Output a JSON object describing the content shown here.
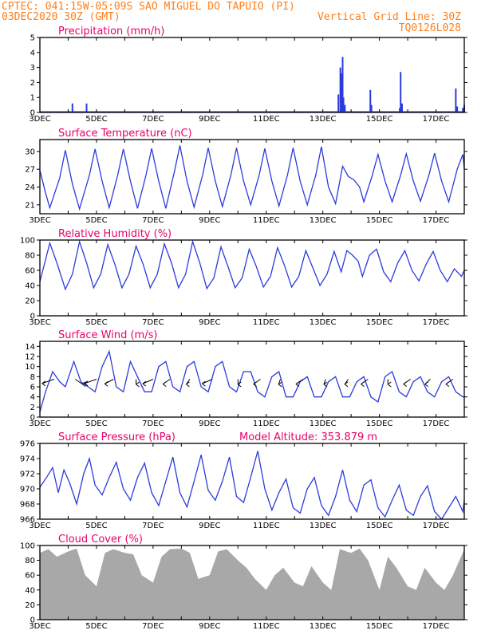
{
  "header": {
    "line1": "CPTEC:   041:15W-05:09S  SAO MIGUEL DO TAPUIO (PI)",
    "line2_left": "03DEC2020 30Z (GMT)",
    "line2_right": "Vertical Grid Line: 30Z",
    "line3_right": "TQ0126L028"
  },
  "colors": {
    "series": "#2b3bdc",
    "title": "#e8006c",
    "header": "#ff7f1a",
    "cloud": "#a8a8a8"
  },
  "x_tick_labels": [
    "3DEC",
    "5DEC",
    "7DEC",
    "9DEC",
    "11DEC",
    "13DEC",
    "15DEC",
    "17DEC"
  ],
  "x_range_days": [
    3,
    18
  ],
  "chart_data": [
    {
      "id": "precip",
      "type": "bar",
      "title": "Precipitation (mm/h)",
      "ylim": [
        0,
        5
      ],
      "yticks": [
        "0",
        "1",
        "2",
        "3",
        "4",
        "5"
      ],
      "x_day": [
        4.15,
        4.65,
        13.55,
        13.62,
        13.65,
        13.7,
        13.73,
        13.78,
        14.68,
        14.72,
        15.72,
        15.75,
        15.8,
        17.7,
        17.75,
        17.95,
        18.0
      ],
      "values": [
        0.6,
        0.6,
        1.2,
        3.0,
        2.6,
        3.7,
        1.0,
        0.5,
        1.5,
        0.5,
        0.3,
        2.7,
        0.6,
        1.6,
        0.4,
        0.3,
        0.5
      ]
    },
    {
      "id": "temp",
      "type": "line",
      "title": "Surface Temperature (nC)",
      "ylim": [
        19.5,
        32
      ],
      "yticks": [
        "21",
        "24",
        "27",
        "30"
      ],
      "series": [
        {
          "x_day": [
            3.0,
            3.2,
            3.35,
            3.7,
            3.9,
            4.15,
            4.4,
            4.75,
            4.95,
            5.2,
            5.45,
            5.75,
            5.95,
            6.2,
            6.45,
            6.75,
            6.95,
            7.2,
            7.45,
            7.75,
            7.95,
            8.2,
            8.45,
            8.75,
            8.95,
            9.2,
            9.45,
            9.75,
            9.95,
            10.2,
            10.45,
            10.75,
            10.95,
            11.2,
            11.45,
            11.75,
            11.95,
            12.2,
            12.45,
            12.75,
            12.95,
            13.2,
            13.45,
            13.7,
            13.9,
            14.1,
            14.3,
            14.45,
            14.75,
            14.95,
            15.2,
            15.45,
            15.75,
            15.95,
            16.2,
            16.45,
            16.75,
            16.95,
            17.2,
            17.45,
            17.75,
            17.95,
            18.0
          ],
          "values": [
            26.8,
            23.0,
            20.5,
            25.5,
            30.2,
            24.5,
            20.3,
            26.0,
            30.4,
            25.0,
            20.5,
            26.0,
            30.4,
            25.0,
            20.4,
            26.0,
            30.5,
            25.0,
            20.4,
            26.5,
            31.0,
            25.0,
            20.6,
            26.0,
            30.6,
            25.0,
            20.7,
            26.0,
            30.6,
            25.0,
            21.0,
            26.0,
            30.5,
            25.0,
            20.8,
            26.0,
            30.6,
            25.0,
            21.0,
            26.0,
            30.8,
            24.0,
            21.2,
            27.5,
            25.8,
            25.2,
            24.0,
            21.5,
            26.0,
            29.5,
            25.0,
            21.5,
            26.0,
            29.6,
            25.0,
            21.6,
            26.0,
            29.7,
            25.0,
            21.5,
            27.0,
            29.5,
            27.0
          ]
        }
      ]
    },
    {
      "id": "rh",
      "type": "line",
      "title": "Relative Humidity (%)",
      "ylim": [
        0,
        100
      ],
      "yticks": [
        "0",
        "20",
        "40",
        "60",
        "80",
        "100"
      ],
      "series": [
        {
          "x_day": [
            3.0,
            3.35,
            3.6,
            3.9,
            4.15,
            4.4,
            4.65,
            4.9,
            5.15,
            5.4,
            5.65,
            5.9,
            6.15,
            6.4,
            6.65,
            6.9,
            7.15,
            7.4,
            7.65,
            7.9,
            8.15,
            8.4,
            8.65,
            8.9,
            9.15,
            9.4,
            9.65,
            9.9,
            10.15,
            10.4,
            10.65,
            10.9,
            11.15,
            11.4,
            11.65,
            11.9,
            12.15,
            12.4,
            12.65,
            12.9,
            13.15,
            13.4,
            13.65,
            13.85,
            14.05,
            14.25,
            14.4,
            14.65,
            14.9,
            15.15,
            15.4,
            15.65,
            15.9,
            16.15,
            16.4,
            16.65,
            16.9,
            17.15,
            17.4,
            17.65,
            17.9,
            18.0
          ],
          "values": [
            45,
            96,
            70,
            35,
            55,
            98,
            70,
            37,
            55,
            94,
            68,
            37,
            55,
            92,
            68,
            37,
            55,
            95,
            70,
            37,
            55,
            98,
            70,
            36,
            50,
            91,
            65,
            37,
            50,
            88,
            65,
            38,
            52,
            90,
            66,
            38,
            52,
            86,
            63,
            40,
            55,
            85,
            58,
            86,
            80,
            72,
            52,
            80,
            88,
            58,
            45,
            70,
            86,
            60,
            46,
            68,
            85,
            60,
            45,
            62,
            52,
            60
          ]
        }
      ]
    },
    {
      "id": "wind",
      "type": "line",
      "title": "Surface Wind (m/s)",
      "ylim": [
        0,
        15
      ],
      "yticks": [
        "0",
        "2",
        "4",
        "6",
        "8",
        "10",
        "12",
        "14"
      ],
      "series": [
        {
          "x_day": [
            3.0,
            3.2,
            3.45,
            3.7,
            3.9,
            4.2,
            4.45,
            4.7,
            4.95,
            5.2,
            5.45,
            5.7,
            5.95,
            6.2,
            6.45,
            6.7,
            6.95,
            7.2,
            7.45,
            7.7,
            7.95,
            8.2,
            8.45,
            8.7,
            8.95,
            9.2,
            9.45,
            9.7,
            9.95,
            10.2,
            10.45,
            10.7,
            10.95,
            11.2,
            11.45,
            11.7,
            11.95,
            12.2,
            12.45,
            12.7,
            12.95,
            13.2,
            13.45,
            13.7,
            13.95,
            14.2,
            14.45,
            14.7,
            14.95,
            15.2,
            15.45,
            15.7,
            15.95,
            16.2,
            16.45,
            16.7,
            16.95,
            17.2,
            17.45,
            17.7,
            17.95,
            18.0
          ],
          "values": [
            1,
            5,
            9,
            7,
            6,
            11,
            7,
            6,
            5,
            10,
            13,
            6,
            5,
            11,
            8,
            5,
            5,
            10,
            11,
            6,
            5,
            10,
            11,
            6,
            5,
            10,
            11,
            6,
            5,
            9,
            9,
            5,
            4,
            8,
            9,
            4,
            4,
            7,
            8,
            4,
            4,
            7,
            8,
            4,
            4,
            7,
            8,
            4,
            3,
            8,
            9,
            5,
            4,
            7,
            8,
            5,
            4,
            7,
            8,
            5,
            4,
            4
          ]
        }
      ],
      "arrows": [
        {
          "x_day": 3.5,
          "dir_deg": 215
        },
        {
          "x_day": 4.25,
          "dir_deg": 160
        },
        {
          "x_day": 5.0,
          "dir_deg": 215
        },
        {
          "x_day": 5.6,
          "dir_deg": 205
        },
        {
          "x_day": 6.4,
          "dir_deg": 180
        },
        {
          "x_day": 7.0,
          "dir_deg": 210
        },
        {
          "x_day": 7.6,
          "dir_deg": 200
        },
        {
          "x_day": 8.3,
          "dir_deg": 190
        },
        {
          "x_day": 9.1,
          "dir_deg": 210
        },
        {
          "x_day": 10.0,
          "dir_deg": 180
        },
        {
          "x_day": 10.8,
          "dir_deg": 200
        },
        {
          "x_day": 11.5,
          "dir_deg": 185
        },
        {
          "x_day": 12.3,
          "dir_deg": 200
        },
        {
          "x_day": 13.1,
          "dir_deg": 185
        },
        {
          "x_day": 13.9,
          "dir_deg": 190
        },
        {
          "x_day": 14.6,
          "dir_deg": 200
        },
        {
          "x_day": 15.3,
          "dir_deg": 180
        },
        {
          "x_day": 16.1,
          "dir_deg": 200
        },
        {
          "x_day": 16.8,
          "dir_deg": 195
        },
        {
          "x_day": 17.6,
          "dir_deg": 200
        }
      ]
    },
    {
      "id": "pres",
      "type": "line",
      "title": "Surface Pressure (hPa)",
      "annotation": "Model Altitude: 353.879  m",
      "ylim": [
        966,
        976
      ],
      "yticks": [
        "966",
        "968",
        "970",
        "972",
        "974",
        "976"
      ],
      "series": [
        {
          "x_day": [
            3.0,
            3.25,
            3.45,
            3.65,
            3.85,
            4.05,
            4.3,
            4.55,
            4.75,
            4.95,
            5.2,
            5.45,
            5.7,
            5.95,
            6.2,
            6.45,
            6.7,
            6.95,
            7.2,
            7.45,
            7.7,
            7.95,
            8.2,
            8.45,
            8.7,
            8.95,
            9.2,
            9.45,
            9.7,
            9.95,
            10.2,
            10.45,
            10.7,
            10.95,
            11.2,
            11.45,
            11.7,
            11.95,
            12.2,
            12.45,
            12.7,
            12.95,
            13.2,
            13.45,
            13.7,
            13.95,
            14.2,
            14.45,
            14.7,
            14.95,
            15.2,
            15.45,
            15.7,
            15.95,
            16.2,
            16.45,
            16.7,
            16.95,
            17.2,
            17.45,
            17.7,
            17.95,
            18.0
          ],
          "values": [
            970.2,
            971.6,
            972.8,
            969.5,
            972.5,
            970.8,
            968.0,
            972.0,
            974.0,
            970.5,
            969.2,
            971.5,
            973.5,
            970.0,
            968.5,
            971.5,
            973.4,
            969.5,
            967.8,
            971.0,
            974.2,
            969.5,
            967.6,
            971.0,
            974.5,
            969.8,
            968.5,
            971.0,
            974.2,
            969.0,
            968.2,
            971.5,
            975.0,
            970.0,
            967.2,
            969.5,
            971.3,
            967.5,
            966.8,
            970.0,
            971.5,
            967.8,
            966.5,
            969.0,
            972.5,
            968.5,
            967.0,
            970.5,
            971.2,
            967.5,
            966.3,
            968.5,
            970.5,
            967.2,
            966.5,
            969.0,
            970.4,
            967.0,
            966.0,
            967.5,
            969.0,
            967.0,
            968.5
          ]
        }
      ]
    },
    {
      "id": "cloud",
      "type": "area",
      "title": "Cloud Cover (%)",
      "ylim": [
        0,
        100
      ],
      "yticks": [
        "0",
        "20",
        "40",
        "60",
        "80",
        "100"
      ],
      "series": [
        {
          "x_day": [
            3.0,
            3.3,
            3.6,
            4.0,
            4.3,
            4.6,
            5.0,
            5.3,
            5.6,
            6.0,
            6.3,
            6.6,
            7.0,
            7.3,
            7.6,
            8.0,
            8.3,
            8.6,
            9.0,
            9.3,
            9.6,
            10.0,
            10.3,
            10.6,
            11.0,
            11.3,
            11.6,
            12.0,
            12.3,
            12.6,
            13.0,
            13.3,
            13.6,
            14.0,
            14.3,
            14.6,
            15.0,
            15.3,
            15.6,
            16.0,
            16.3,
            16.6,
            17.0,
            17.3,
            17.6,
            18.0
          ],
          "values": [
            90,
            95,
            85,
            92,
            96,
            60,
            45,
            90,
            95,
            90,
            88,
            60,
            50,
            85,
            95,
            96,
            90,
            55,
            60,
            92,
            95,
            80,
            70,
            55,
            40,
            60,
            70,
            50,
            45,
            72,
            50,
            40,
            95,
            90,
            96,
            80,
            40,
            85,
            70,
            45,
            40,
            70,
            50,
            40,
            60,
            95
          ]
        }
      ]
    }
  ]
}
